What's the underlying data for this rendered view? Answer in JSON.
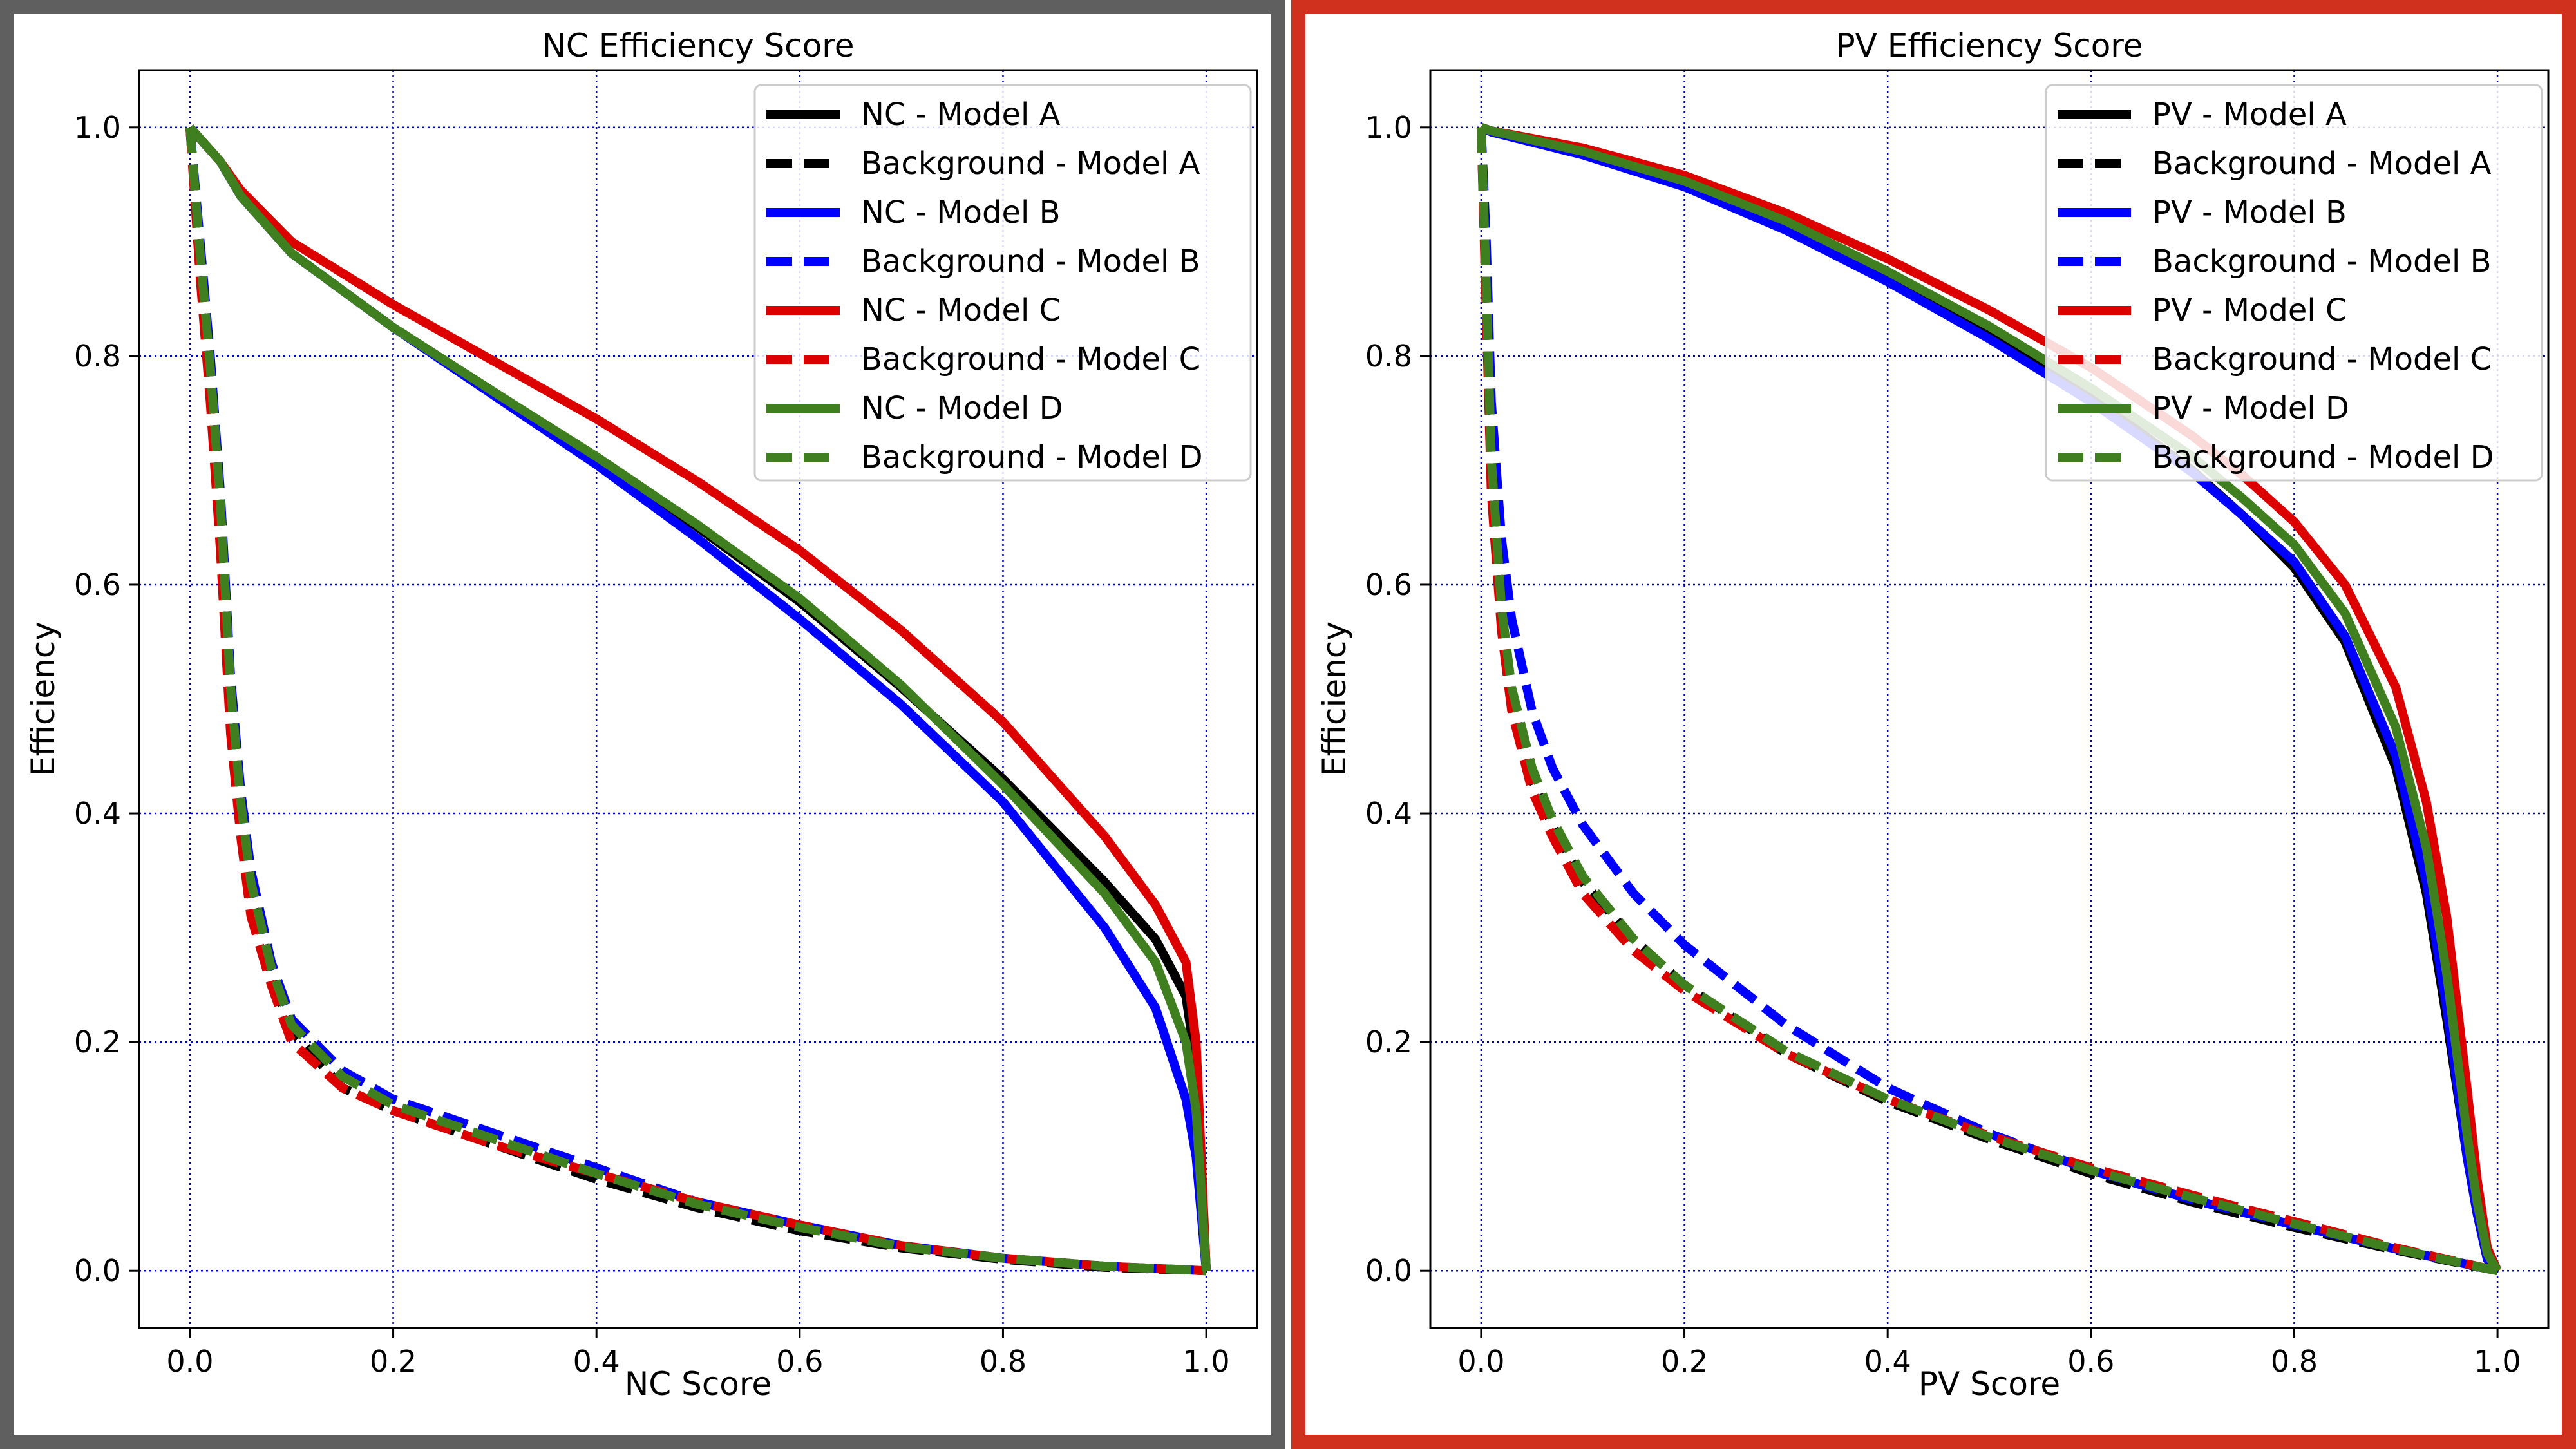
{
  "colors": {
    "left_frame": "#5f5f5f",
    "right_frame": "#d0301e",
    "grid": "#0000cc",
    "model_a": "#000000",
    "model_b": "#0000ff",
    "model_c": "#dd0000",
    "model_d": "#3f7f1f"
  },
  "chart_data": [
    {
      "type": "line",
      "title": "NC Efficiency Score",
      "xlabel": "NC Score",
      "ylabel": "Efficiency",
      "xlim": [
        -0.05,
        1.05
      ],
      "ylim": [
        -0.05,
        1.05
      ],
      "xticks": [
        "0.0",
        "0.2",
        "0.4",
        "0.6",
        "0.8",
        "1.0"
      ],
      "yticks": [
        "0.0",
        "0.2",
        "0.4",
        "0.6",
        "0.8",
        "1.0"
      ],
      "grid": true,
      "legend_position": "top-right",
      "series": [
        {
          "name": "NC - Model A",
          "color": "#000000",
          "style": "solid",
          "x": [
            0,
            0.01,
            0.03,
            0.05,
            0.1,
            0.2,
            0.3,
            0.4,
            0.5,
            0.6,
            0.7,
            0.8,
            0.9,
            0.95,
            0.98,
            0.99,
            1.0
          ],
          "y": [
            1.0,
            0.99,
            0.97,
            0.94,
            0.89,
            0.825,
            0.768,
            0.71,
            0.65,
            0.585,
            0.51,
            0.43,
            0.34,
            0.29,
            0.24,
            0.18,
            0.0
          ]
        },
        {
          "name": "Background - Model A",
          "color": "#000000",
          "style": "dashed",
          "x": [
            0,
            0.01,
            0.02,
            0.03,
            0.04,
            0.05,
            0.06,
            0.08,
            0.1,
            0.15,
            0.2,
            0.3,
            0.4,
            0.5,
            0.6,
            0.7,
            0.8,
            0.9,
            1.0
          ],
          "y": [
            1.0,
            0.88,
            0.78,
            0.66,
            0.5,
            0.4,
            0.33,
            0.26,
            0.21,
            0.16,
            0.14,
            0.11,
            0.08,
            0.055,
            0.035,
            0.02,
            0.01,
            0.003,
            0.0
          ]
        },
        {
          "name": "NC - Model B",
          "color": "#0000ff",
          "style": "solid",
          "x": [
            0,
            0.01,
            0.03,
            0.05,
            0.1,
            0.2,
            0.3,
            0.4,
            0.5,
            0.6,
            0.7,
            0.8,
            0.9,
            0.95,
            0.98,
            0.99,
            1.0
          ],
          "y": [
            1.0,
            0.99,
            0.97,
            0.94,
            0.89,
            0.825,
            0.765,
            0.705,
            0.64,
            0.57,
            0.495,
            0.41,
            0.3,
            0.23,
            0.15,
            0.1,
            0.0
          ]
        },
        {
          "name": "Background - Model B",
          "color": "#0000ff",
          "style": "dashed",
          "x": [
            0,
            0.01,
            0.02,
            0.03,
            0.04,
            0.05,
            0.06,
            0.08,
            0.1,
            0.15,
            0.2,
            0.3,
            0.4,
            0.5,
            0.6,
            0.7,
            0.8,
            0.9,
            1.0
          ],
          "y": [
            1.0,
            0.9,
            0.8,
            0.68,
            0.52,
            0.42,
            0.35,
            0.27,
            0.22,
            0.175,
            0.15,
            0.12,
            0.09,
            0.06,
            0.04,
            0.022,
            0.011,
            0.004,
            0.0
          ]
        },
        {
          "name": "NC - Model C",
          "color": "#dd0000",
          "style": "solid",
          "x": [
            0,
            0.01,
            0.03,
            0.05,
            0.1,
            0.2,
            0.3,
            0.4,
            0.5,
            0.6,
            0.7,
            0.8,
            0.9,
            0.95,
            0.98,
            0.99,
            1.0
          ],
          "y": [
            1.0,
            0.99,
            0.97,
            0.945,
            0.9,
            0.845,
            0.795,
            0.745,
            0.69,
            0.63,
            0.56,
            0.48,
            0.38,
            0.32,
            0.27,
            0.2,
            0.0
          ]
        },
        {
          "name": "Background - Model C",
          "color": "#dd0000",
          "style": "dashed",
          "x": [
            0,
            0.01,
            0.02,
            0.03,
            0.04,
            0.05,
            0.06,
            0.08,
            0.1,
            0.15,
            0.2,
            0.3,
            0.4,
            0.5,
            0.6,
            0.7,
            0.8,
            0.9,
            1.0
          ],
          "y": [
            1.0,
            0.87,
            0.76,
            0.63,
            0.47,
            0.38,
            0.31,
            0.25,
            0.2,
            0.16,
            0.14,
            0.11,
            0.085,
            0.06,
            0.04,
            0.022,
            0.011,
            0.004,
            0.0
          ]
        },
        {
          "name": "NC - Model D",
          "color": "#3f7f1f",
          "style": "solid",
          "x": [
            0,
            0.01,
            0.03,
            0.05,
            0.1,
            0.2,
            0.3,
            0.4,
            0.5,
            0.6,
            0.7,
            0.8,
            0.9,
            0.95,
            0.98,
            0.99,
            1.0
          ],
          "y": [
            1.0,
            0.99,
            0.97,
            0.94,
            0.89,
            0.825,
            0.768,
            0.712,
            0.652,
            0.588,
            0.512,
            0.425,
            0.33,
            0.27,
            0.2,
            0.14,
            0.0
          ]
        },
        {
          "name": "Background - Model D",
          "color": "#3f7f1f",
          "style": "dashed",
          "x": [
            0,
            0.01,
            0.02,
            0.03,
            0.04,
            0.05,
            0.06,
            0.08,
            0.1,
            0.15,
            0.2,
            0.3,
            0.4,
            0.5,
            0.6,
            0.7,
            0.8,
            0.9,
            1.0
          ],
          "y": [
            1.0,
            0.89,
            0.79,
            0.67,
            0.51,
            0.41,
            0.34,
            0.265,
            0.215,
            0.17,
            0.145,
            0.115,
            0.085,
            0.058,
            0.038,
            0.021,
            0.011,
            0.004,
            0.0
          ]
        }
      ]
    },
    {
      "type": "line",
      "title": "PV Efficiency Score",
      "xlabel": "PV Score",
      "ylabel": "Efficiency",
      "xlim": [
        -0.05,
        1.05
      ],
      "ylim": [
        -0.05,
        1.05
      ],
      "xticks": [
        "0.0",
        "0.2",
        "0.4",
        "0.6",
        "0.8",
        "1.0"
      ],
      "yticks": [
        "0.0",
        "0.2",
        "0.4",
        "0.6",
        "0.8",
        "1.0"
      ],
      "grid": true,
      "legend_position": "top-right",
      "series": [
        {
          "name": "PV - Model A",
          "color": "#000000",
          "style": "solid",
          "x": [
            0,
            0.01,
            0.1,
            0.2,
            0.3,
            0.4,
            0.5,
            0.6,
            0.7,
            0.75,
            0.8,
            0.85,
            0.9,
            0.93,
            0.95,
            0.97,
            0.98,
            0.99,
            1.0
          ],
          "y": [
            1.0,
            0.997,
            0.98,
            0.952,
            0.915,
            0.87,
            0.82,
            0.765,
            0.7,
            0.66,
            0.615,
            0.55,
            0.44,
            0.33,
            0.22,
            0.1,
            0.05,
            0.01,
            0.0
          ]
        },
        {
          "name": "Background - Model A",
          "color": "#000000",
          "style": "dashed",
          "x": [
            0,
            0.005,
            0.01,
            0.02,
            0.03,
            0.05,
            0.07,
            0.1,
            0.15,
            0.2,
            0.3,
            0.4,
            0.5,
            0.6,
            0.7,
            0.8,
            0.9,
            1.0
          ],
          "y": [
            1.0,
            0.85,
            0.7,
            0.57,
            0.5,
            0.43,
            0.39,
            0.34,
            0.29,
            0.25,
            0.19,
            0.148,
            0.115,
            0.085,
            0.06,
            0.038,
            0.018,
            0.0
          ]
        },
        {
          "name": "PV - Model B",
          "color": "#0000ff",
          "style": "solid",
          "x": [
            0,
            0.01,
            0.1,
            0.2,
            0.3,
            0.4,
            0.5,
            0.6,
            0.7,
            0.75,
            0.8,
            0.85,
            0.9,
            0.93,
            0.95,
            0.97,
            0.98,
            0.99,
            1.0
          ],
          "y": [
            1.0,
            0.996,
            0.976,
            0.948,
            0.91,
            0.865,
            0.815,
            0.76,
            0.698,
            0.66,
            0.62,
            0.555,
            0.45,
            0.34,
            0.23,
            0.1,
            0.05,
            0.01,
            0.0
          ]
        },
        {
          "name": "Background - Model B",
          "color": "#0000ff",
          "style": "dashed",
          "x": [
            0,
            0.005,
            0.01,
            0.02,
            0.03,
            0.05,
            0.07,
            0.1,
            0.15,
            0.2,
            0.3,
            0.4,
            0.5,
            0.6,
            0.7,
            0.8,
            0.9,
            1.0
          ],
          "y": [
            1.0,
            0.9,
            0.76,
            0.64,
            0.57,
            0.49,
            0.44,
            0.39,
            0.33,
            0.285,
            0.215,
            0.16,
            0.12,
            0.088,
            0.062,
            0.04,
            0.019,
            0.0
          ]
        },
        {
          "name": "PV - Model C",
          "color": "#dd0000",
          "style": "solid",
          "x": [
            0,
            0.01,
            0.1,
            0.2,
            0.3,
            0.4,
            0.5,
            0.6,
            0.7,
            0.75,
            0.8,
            0.85,
            0.9,
            0.93,
            0.95,
            0.97,
            0.98,
            0.99,
            1.0
          ],
          "y": [
            1.0,
            0.997,
            0.982,
            0.958,
            0.925,
            0.885,
            0.84,
            0.79,
            0.73,
            0.695,
            0.655,
            0.6,
            0.51,
            0.41,
            0.31,
            0.16,
            0.08,
            0.02,
            0.0
          ]
        },
        {
          "name": "Background - Model C",
          "color": "#dd0000",
          "style": "dashed",
          "x": [
            0,
            0.005,
            0.01,
            0.02,
            0.03,
            0.05,
            0.07,
            0.1,
            0.15,
            0.2,
            0.3,
            0.4,
            0.5,
            0.6,
            0.7,
            0.8,
            0.9,
            1.0
          ],
          "y": [
            1.0,
            0.84,
            0.68,
            0.56,
            0.49,
            0.42,
            0.38,
            0.33,
            0.28,
            0.245,
            0.19,
            0.15,
            0.118,
            0.09,
            0.066,
            0.043,
            0.02,
            0.0
          ]
        },
        {
          "name": "PV - Model D",
          "color": "#3f7f1f",
          "style": "solid",
          "x": [
            0,
            0.01,
            0.1,
            0.2,
            0.3,
            0.4,
            0.5,
            0.6,
            0.7,
            0.75,
            0.8,
            0.85,
            0.9,
            0.93,
            0.95,
            0.97,
            0.98,
            0.99,
            1.0
          ],
          "y": [
            1.0,
            0.997,
            0.979,
            0.953,
            0.918,
            0.874,
            0.826,
            0.772,
            0.712,
            0.675,
            0.635,
            0.575,
            0.475,
            0.37,
            0.26,
            0.12,
            0.06,
            0.015,
            0.0
          ]
        },
        {
          "name": "Background - Model D",
          "color": "#3f7f1f",
          "style": "dashed",
          "x": [
            0,
            0.005,
            0.01,
            0.02,
            0.03,
            0.05,
            0.07,
            0.1,
            0.15,
            0.2,
            0.3,
            0.4,
            0.5,
            0.6,
            0.7,
            0.8,
            0.9,
            1.0
          ],
          "y": [
            1.0,
            0.86,
            0.71,
            0.58,
            0.51,
            0.44,
            0.395,
            0.345,
            0.29,
            0.25,
            0.192,
            0.15,
            0.117,
            0.088,
            0.064,
            0.041,
            0.019,
            0.0
          ]
        }
      ]
    }
  ]
}
